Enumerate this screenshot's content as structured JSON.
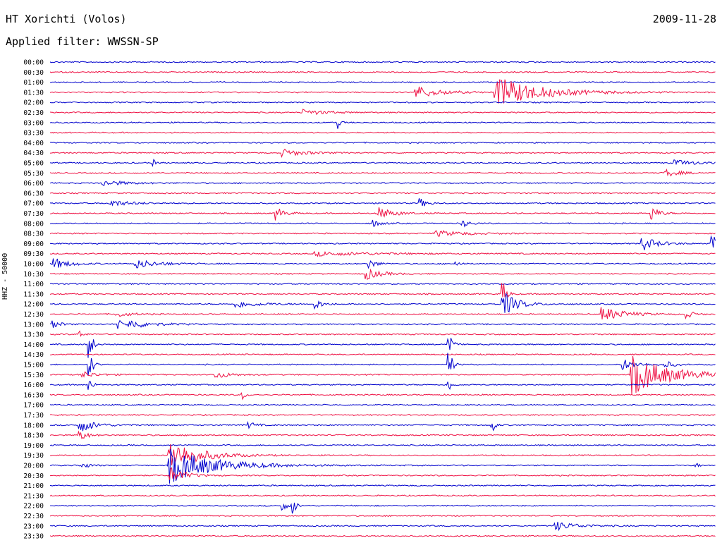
{
  "header": {
    "station": "HT Xorichti (Volos)",
    "filter": "Applied filter: WWSSN-SP",
    "date": "2009-11-28"
  },
  "chart_data": {
    "type": "line",
    "title": "HT Xorichti (Volos)",
    "subtitle": "Applied filter: WWSSN-SP",
    "date": "2009-11-28",
    "ylabel": "HHZ - 50000",
    "row_labels": [
      "00:00",
      "00:30",
      "01:00",
      "01:30",
      "02:00",
      "02:30",
      "03:00",
      "03:30",
      "04:00",
      "04:30",
      "05:00",
      "05:30",
      "06:00",
      "06:30",
      "07:00",
      "07:30",
      "08:00",
      "08:30",
      "09:00",
      "09:30",
      "10:00",
      "10:30",
      "11:00",
      "11:30",
      "12:00",
      "12:30",
      "13:00",
      "13:30",
      "14:00",
      "14:30",
      "15:00",
      "15:30",
      "16:00",
      "16:30",
      "17:00",
      "17:30",
      "18:00",
      "18:30",
      "19:00",
      "19:30",
      "20:00",
      "20:30",
      "21:00",
      "21:30",
      "22:00",
      "22:30",
      "23:00",
      "23:30"
    ],
    "colors": [
      "#0000cc",
      "#ee1144"
    ],
    "x_range_minutes": [
      0,
      30
    ],
    "events": [
      {
        "row": 3,
        "x": 0.55,
        "amp": 9,
        "dur": 0.03
      },
      {
        "row": 3,
        "x": 0.67,
        "amp": 22,
        "dur": 0.06
      },
      {
        "row": 5,
        "x": 0.38,
        "amp": 4,
        "dur": 0.03
      },
      {
        "row": 6,
        "x": 0.435,
        "amp": 8,
        "dur": 0.003
      },
      {
        "row": 9,
        "x": 0.35,
        "amp": 5,
        "dur": 0.03
      },
      {
        "row": 10,
        "x": 0.155,
        "amp": 5,
        "dur": 0.003
      },
      {
        "row": 10,
        "x": 0.94,
        "amp": 4,
        "dur": 0.03
      },
      {
        "row": 11,
        "x": 0.925,
        "amp": 5,
        "dur": 0.02
      },
      {
        "row": 12,
        "x": 0.08,
        "amp": 4,
        "dur": 0.03
      },
      {
        "row": 14,
        "x": 0.09,
        "amp": 4,
        "dur": 0.03
      },
      {
        "row": 14,
        "x": 0.555,
        "amp": 7,
        "dur": 0.01
      },
      {
        "row": 15,
        "x": 0.34,
        "amp": 10,
        "dur": 0.01
      },
      {
        "row": 15,
        "x": 0.495,
        "amp": 8,
        "dur": 0.02
      },
      {
        "row": 15,
        "x": 0.905,
        "amp": 10,
        "dur": 0.01
      },
      {
        "row": 16,
        "x": 0.485,
        "amp": 5,
        "dur": 0.01
      },
      {
        "row": 16,
        "x": 0.62,
        "amp": 5,
        "dur": 0.01
      },
      {
        "row": 17,
        "x": 0.58,
        "amp": 4,
        "dur": 0.04
      },
      {
        "row": 18,
        "x": 0.89,
        "amp": 10,
        "dur": 0.02
      },
      {
        "row": 18,
        "x": 0.995,
        "amp": 12,
        "dur": 0.01
      },
      {
        "row": 19,
        "x": 0.4,
        "amp": 3,
        "dur": 0.08
      },
      {
        "row": 20,
        "x": 0.005,
        "amp": 8,
        "dur": 0.02
      },
      {
        "row": 20,
        "x": 0.13,
        "amp": 6,
        "dur": 0.03
      },
      {
        "row": 20,
        "x": 0.48,
        "amp": 6,
        "dur": 0.01
      },
      {
        "row": 20,
        "x": 0.61,
        "amp": 6,
        "dur": 0.005
      },
      {
        "row": 21,
        "x": 0.475,
        "amp": 8,
        "dur": 0.02
      },
      {
        "row": 23,
        "x": 0.68,
        "amp": 22,
        "dur": 0.005
      },
      {
        "row": 24,
        "x": 0.68,
        "amp": 18,
        "dur": 0.02
      },
      {
        "row": 24,
        "x": 0.28,
        "amp": 5,
        "dur": 0.03
      },
      {
        "row": 24,
        "x": 0.4,
        "amp": 6,
        "dur": 0.01
      },
      {
        "row": 25,
        "x": 0.1,
        "amp": 4,
        "dur": 0.02
      },
      {
        "row": 25,
        "x": 0.83,
        "amp": 10,
        "dur": 0.03
      },
      {
        "row": 25,
        "x": 0.955,
        "amp": 6,
        "dur": 0.01
      },
      {
        "row": 26,
        "x": 0.1,
        "amp": 12,
        "dur": 0.005
      },
      {
        "row": 26,
        "x": 0.12,
        "amp": 6,
        "dur": 0.03
      },
      {
        "row": 26,
        "x": 0.005,
        "amp": 5,
        "dur": 0.01
      },
      {
        "row": 27,
        "x": 0.045,
        "amp": 5,
        "dur": 0.005
      },
      {
        "row": 28,
        "x": 0.06,
        "amp": 25,
        "dur": 0.004
      },
      {
        "row": 28,
        "x": 0.6,
        "amp": 20,
        "dur": 0.004
      },
      {
        "row": 30,
        "x": 0.06,
        "amp": 22,
        "dur": 0.004
      },
      {
        "row": 30,
        "x": 0.6,
        "amp": 25,
        "dur": 0.004
      },
      {
        "row": 30,
        "x": 0.86,
        "amp": 8,
        "dur": 0.02
      },
      {
        "row": 30,
        "x": 0.925,
        "amp": 5,
        "dur": 0.01
      },
      {
        "row": 31,
        "x": 0.875,
        "amp": 28,
        "dur": 0.05
      },
      {
        "row": 31,
        "x": 0.25,
        "amp": 5,
        "dur": 0.02
      },
      {
        "row": 31,
        "x": 0.05,
        "amp": 4,
        "dur": 0.02
      },
      {
        "row": 32,
        "x": 0.06,
        "amp": 10,
        "dur": 0.004
      },
      {
        "row": 32,
        "x": 0.6,
        "amp": 10,
        "dur": 0.004
      },
      {
        "row": 33,
        "x": 0.29,
        "amp": 6,
        "dur": 0.004
      },
      {
        "row": 36,
        "x": 0.045,
        "amp": 10,
        "dur": 0.02
      },
      {
        "row": 36,
        "x": 0.665,
        "amp": 10,
        "dur": 0.004
      },
      {
        "row": 36,
        "x": 0.3,
        "amp": 4,
        "dur": 0.01
      },
      {
        "row": 37,
        "x": 0.045,
        "amp": 8,
        "dur": 0.01
      },
      {
        "row": 39,
        "x": 0.18,
        "amp": 22,
        "dur": 0.04
      },
      {
        "row": 40,
        "x": 0.18,
        "amp": 25,
        "dur": 0.06
      },
      {
        "row": 40,
        "x": 0.05,
        "amp": 4,
        "dur": 0.01
      },
      {
        "row": 40,
        "x": 0.97,
        "amp": 4,
        "dur": 0.004
      },
      {
        "row": 41,
        "x": 0.18,
        "amp": 12,
        "dur": 0.02
      },
      {
        "row": 44,
        "x": 0.35,
        "amp": 10,
        "dur": 0.004
      },
      {
        "row": 44,
        "x": 0.365,
        "amp": 14,
        "dur": 0.004
      },
      {
        "row": 46,
        "x": 0.76,
        "amp": 6,
        "dur": 0.03
      }
    ]
  }
}
